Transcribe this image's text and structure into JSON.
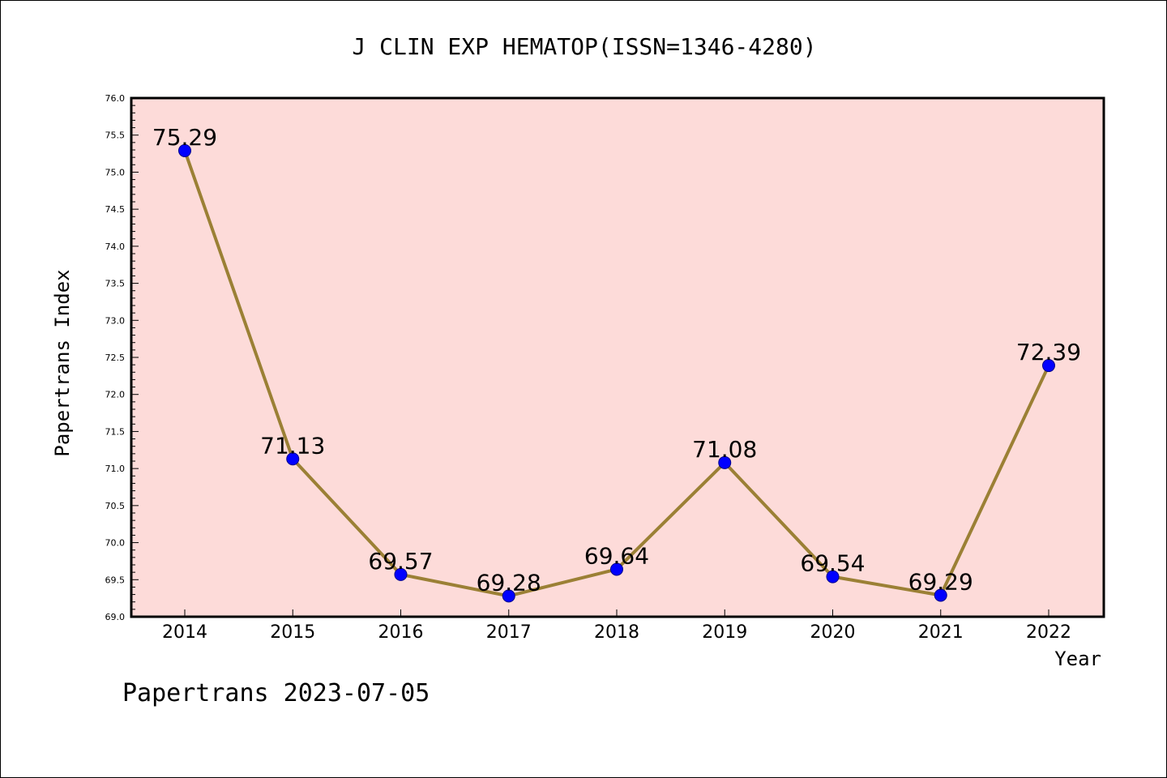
{
  "chart_data": {
    "type": "line",
    "title": "J CLIN EXP HEMATOP(ISSN=1346-4280)",
    "xlabel": "Year",
    "ylabel": "Papertrans Index",
    "x": [
      "2014",
      "2015",
      "2016",
      "2017",
      "2018",
      "2019",
      "2020",
      "2021",
      "2022"
    ],
    "series": [
      {
        "values": [
          75.29,
          71.13,
          69.57,
          69.28,
          69.64,
          71.08,
          69.54,
          69.29,
          72.39
        ]
      }
    ],
    "data_labels": [
      "75.29",
      "71.13",
      "69.57",
      "69.28",
      "69.64",
      "71.08",
      "69.54",
      "69.29",
      "72.39"
    ],
    "ylim": [
      69.0,
      76.0
    ],
    "yticks": [
      "69.0",
      "69.5",
      "70.0",
      "70.5",
      "71.0",
      "71.5",
      "72.0",
      "72.5",
      "73.0",
      "73.5",
      "74.0",
      "74.5",
      "75.0",
      "75.5",
      "76.0"
    ],
    "grid": false,
    "legend": "none",
    "colors": {
      "plot_bg": "#fddbd9",
      "line": "#9b8035",
      "marker": "#0000ff"
    }
  },
  "footer": {
    "text": "Papertrans 2023-07-05"
  }
}
